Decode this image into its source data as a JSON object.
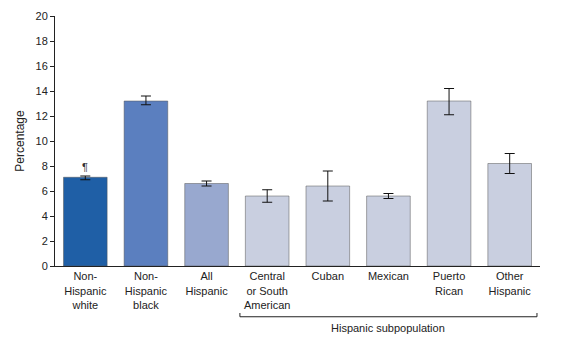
{
  "chart_data": {
    "type": "bar",
    "y_label": "Percentage",
    "categories": [
      "Non-\nHispanic\nwhite",
      "Non-\nHispanic\nblack",
      "All\nHispanic",
      "Central\nor South\nAmerican",
      "Cuban",
      "Mexican",
      "Puerto\nRican",
      "Other\nHispanic"
    ],
    "values": [
      7.1,
      13.2,
      6.6,
      5.6,
      6.4,
      5.6,
      13.2,
      8.2
    ],
    "error_minus": [
      0.2,
      0.3,
      0.2,
      0.5,
      1.2,
      0.2,
      1.1,
      0.8
    ],
    "error_plus": [
      0.1,
      0.4,
      0.2,
      0.5,
      1.2,
      0.2,
      1.0,
      0.8
    ],
    "colors": [
      "#1f5fa6",
      "#5b7fbf",
      "#98a8cf",
      "#c9cfe0",
      "#c9cfe0",
      "#c9cfe0",
      "#c9cfe0",
      "#c9cfe0"
    ],
    "ylim": [
      0,
      20
    ],
    "yticks": [
      0,
      2,
      4,
      6,
      8,
      10,
      12,
      14,
      16,
      18,
      20
    ],
    "grid": false,
    "annotations": [
      {
        "text": "¶",
        "category": "Non-\nHispanic\nwhite"
      },
      {
        "text": "Hispanic subpopulation",
        "from": "Central\nor South\nAmerican",
        "to": "Other\nHispanic"
      }
    ]
  }
}
